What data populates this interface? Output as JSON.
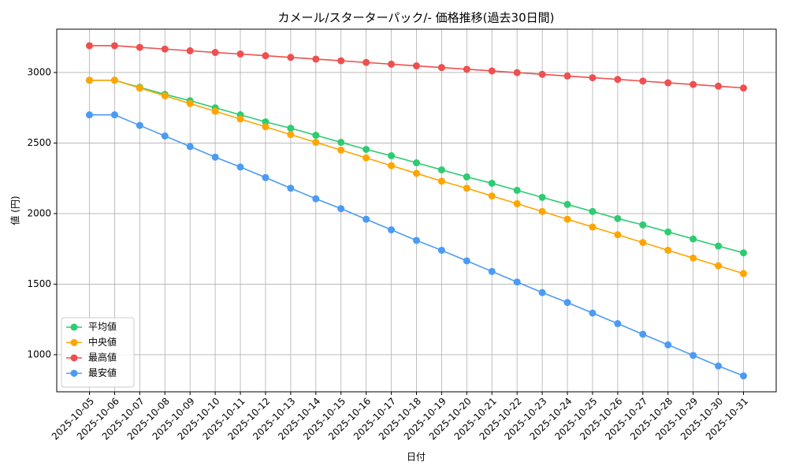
{
  "chart_data": {
    "type": "line",
    "title": "カメール/スターターパック/- 価格推移(過去30日間)",
    "xlabel": "日付",
    "ylabel": "値 (円)",
    "categories": [
      "2025-10-05",
      "2025-10-06",
      "2025-10-07",
      "2025-10-08",
      "2025-10-09",
      "2025-10-10",
      "2025-10-11",
      "2025-10-12",
      "2025-10-13",
      "2025-10-14",
      "2025-10-15",
      "2025-10-16",
      "2025-10-17",
      "2025-10-18",
      "2025-10-19",
      "2025-10-20",
      "2025-10-21",
      "2025-10-22",
      "2025-10-23",
      "2025-10-24",
      "2025-10-25",
      "2025-10-26",
      "2025-10-27",
      "2025-10-28",
      "2025-10-29",
      "2025-10-30",
      "2025-10-31"
    ],
    "series": [
      {
        "name": "平均値",
        "color": "#2ecc71",
        "values": [
          2945,
          2945,
          2895,
          2845,
          2800,
          2750,
          2700,
          2650,
          2605,
          2555,
          2505,
          2455,
          2410,
          2360,
          2310,
          2260,
          2215,
          2165,
          2115,
          2065,
          2015,
          1965,
          1920,
          1870,
          1820,
          1770,
          1722
        ]
      },
      {
        "name": "中央値",
        "color": "#ffa500",
        "values": [
          2945,
          2945,
          2890,
          2835,
          2780,
          2725,
          2670,
          2615,
          2560,
          2505,
          2450,
          2395,
          2340,
          2285,
          2230,
          2180,
          2125,
          2070,
          2015,
          1960,
          1905,
          1850,
          1795,
          1740,
          1685,
          1630,
          1575
        ]
      },
      {
        "name": "最高値",
        "color": "#ef4f4f",
        "values": [
          3190,
          3190,
          3178,
          3166,
          3154,
          3142,
          3131,
          3119,
          3107,
          3095,
          3083,
          3071,
          3059,
          3047,
          3035,
          3023,
          3011,
          2999,
          2987,
          2975,
          2963,
          2951,
          2939,
          2927,
          2915,
          2903,
          2890
        ]
      },
      {
        "name": "最安値",
        "color": "#4b9bf5",
        "values": [
          2700,
          2700,
          2625,
          2550,
          2475,
          2400,
          2330,
          2255,
          2180,
          2105,
          2035,
          1960,
          1885,
          1810,
          1740,
          1665,
          1590,
          1515,
          1440,
          1370,
          1295,
          1220,
          1145,
          1070,
          995,
          920,
          850
        ]
      }
    ],
    "ylim": [
      737,
      3307
    ],
    "yticks": [
      1000,
      1500,
      2000,
      2500,
      3000
    ],
    "grid": true,
    "legend": "lower left"
  }
}
